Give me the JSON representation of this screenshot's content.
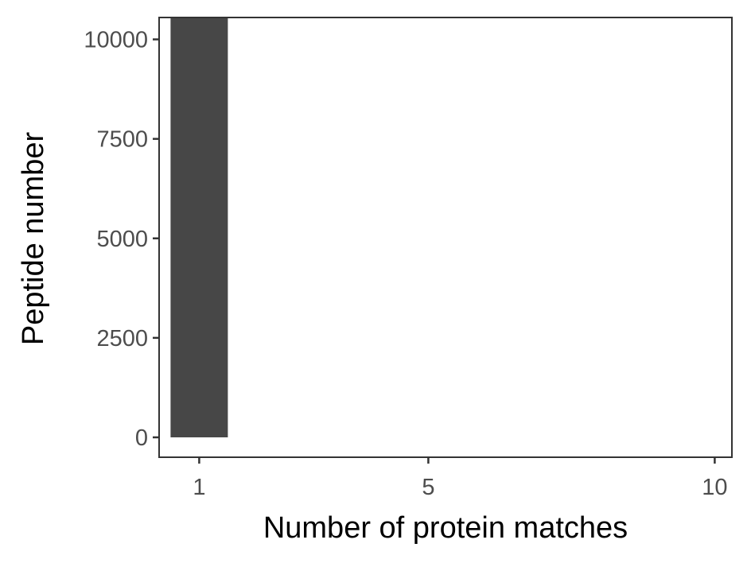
{
  "chart_data": {
    "type": "bar",
    "title": "",
    "xlabel": "Number of protein matches",
    "ylabel": "Peptide number",
    "x": [
      1
    ],
    "values": [
      10550
    ],
    "xlim": [
      0.3,
      10.3
    ],
    "ylim": [
      -500,
      10550
    ],
    "x_ticks": [
      1,
      5,
      10
    ],
    "y_ticks": [
      0,
      2500,
      5000,
      7500,
      10000
    ],
    "x_tick_labels": [
      "1",
      "5",
      "10"
    ],
    "y_tick_labels": [
      "0",
      "2500",
      "5000",
      "7500",
      "10000"
    ],
    "bar_width": 1,
    "grid": false,
    "legend": "none",
    "colors": {
      "bar": "#474747",
      "panel_border": "#333333",
      "tick_label": "#4d4d4d",
      "axis_title": "#000000"
    }
  }
}
